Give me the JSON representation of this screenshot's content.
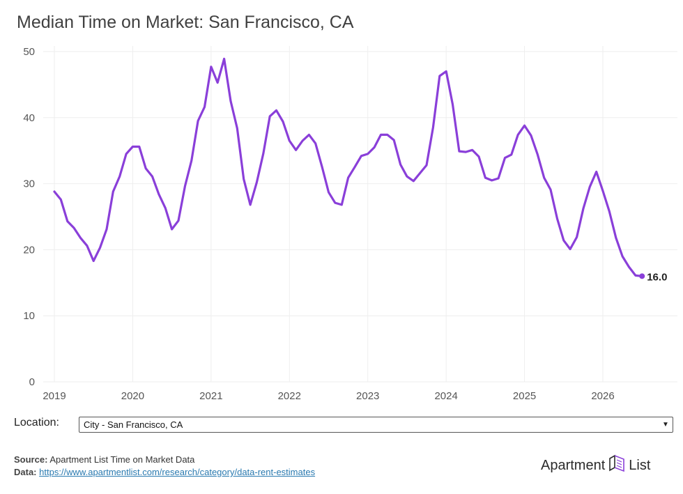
{
  "title": "Median Time on Market: San Francisco, CA",
  "location": {
    "label": "Location:",
    "selected": "City - San Francisco, CA"
  },
  "source": {
    "source_label": "Source:",
    "source_text": "Apartment List Time on Market Data",
    "data_label": "Data:",
    "data_link": "https://www.apartmentlist.com/research/category/data-rent-estimates"
  },
  "logo": {
    "left": "Apartment",
    "right": "List"
  },
  "colors": {
    "line": "#8A3FD9",
    "grid": "#eeeeee",
    "link": "#2a7ab0"
  },
  "chart_data": {
    "type": "line",
    "title": "Median Time on Market: San Francisco, CA",
    "xlabel": "",
    "ylabel": "",
    "ylim": [
      0,
      50
    ],
    "yticks": [
      0,
      10,
      20,
      30,
      40,
      50
    ],
    "xticks": [
      "2019",
      "2020",
      "2021",
      "2022",
      "2023",
      "2024",
      "2025",
      "2026"
    ],
    "grid": true,
    "end_label": "16.0",
    "series": [
      {
        "x": [
          2019.0,
          2019.083,
          2019.167,
          2019.25,
          2019.333,
          2019.417,
          2019.5,
          2019.583,
          2019.667,
          2019.75,
          2019.833,
          2019.917,
          2020.0,
          2020.083,
          2020.167,
          2020.25,
          2020.333,
          2020.417,
          2020.5,
          2020.583,
          2020.667,
          2020.75,
          2020.833,
          2020.917,
          2021.0,
          2021.083,
          2021.167,
          2021.25,
          2021.333,
          2021.417,
          2021.5,
          2021.583,
          2021.667,
          2021.75,
          2021.833,
          2021.917,
          2022.0,
          2022.083,
          2022.167,
          2022.25,
          2022.333,
          2022.417,
          2022.5,
          2022.583,
          2022.667,
          2022.75,
          2022.833,
          2022.917,
          2023.0,
          2023.083,
          2023.167,
          2023.25,
          2023.333,
          2023.417,
          2023.5,
          2023.583,
          2023.667,
          2023.75,
          2023.833,
          2023.917,
          2024.0,
          2024.083,
          2024.167,
          2024.25,
          2024.333,
          2024.417,
          2024.5,
          2024.583,
          2024.667,
          2024.75,
          2024.833,
          2024.917,
          2025.0,
          2025.083,
          2025.167,
          2025.25,
          2025.333,
          2025.417,
          2025.5,
          2025.583,
          2025.667,
          2025.75,
          2025.833,
          2025.917,
          2026.0,
          2026.083,
          2026.167,
          2026.25,
          2026.333,
          2026.417,
          2026.5
        ],
        "values": [
          28.8,
          27.6,
          24.3,
          23.3,
          21.8,
          20.6,
          18.3,
          20.3,
          23.1,
          28.8,
          31.1,
          34.5,
          35.6,
          35.6,
          32.3,
          31.1,
          28.4,
          26.3,
          23.1,
          24.4,
          29.6,
          33.5,
          39.5,
          41.6,
          47.7,
          45.3,
          48.9,
          42.5,
          38.4,
          30.7,
          26.8,
          30.2,
          34.6,
          40.2,
          41.1,
          39.4,
          36.5,
          35.1,
          36.5,
          37.4,
          36.1,
          32.5,
          28.7,
          27.1,
          26.8,
          30.9,
          32.5,
          34.2,
          34.5,
          35.5,
          37.4,
          37.4,
          36.6,
          32.9,
          31.1,
          30.4,
          31.6,
          32.8,
          38.5,
          46.3,
          47.0,
          42.0,
          34.9,
          34.8,
          35.1,
          34.1,
          30.9,
          30.5,
          30.8,
          33.9,
          34.4,
          37.4,
          38.8,
          37.3,
          34.4,
          30.9,
          29.1,
          24.7,
          21.4,
          20.1,
          21.9,
          26.2,
          29.5,
          31.8,
          28.9,
          25.8,
          21.8,
          19.0,
          17.4,
          16.1,
          16.0
        ]
      }
    ]
  }
}
